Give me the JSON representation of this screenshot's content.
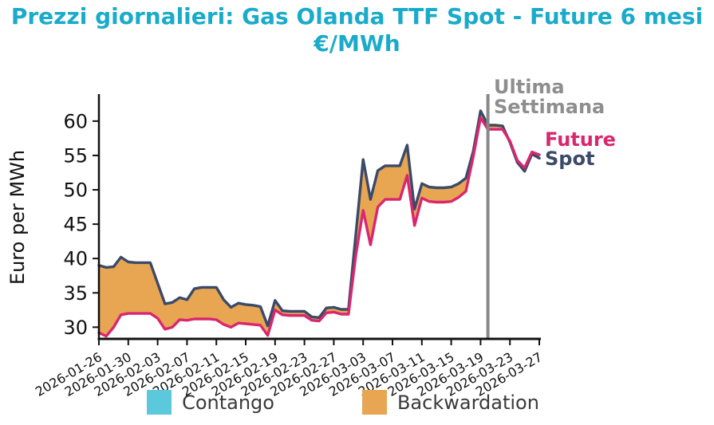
{
  "title": {
    "line1": "Prezzi giornalieri: Gas Olanda TTF Spot - Future 6 mesi",
    "line2": "€/MWh",
    "color": "#1aabca"
  },
  "colors": {
    "spot_line": "#3b4a68",
    "future_line": "#d9276f",
    "backwardation_fill": "#e8a652",
    "contango_fill": "#5cc8db",
    "vline": "#888888",
    "vline_label": "#8e8e8e",
    "axis": "#111111"
  },
  "annotations": {
    "vline": {
      "date": "2026-03-20",
      "label_line1": "Ultima",
      "label_line2": "Settimana"
    },
    "future_label": "Future",
    "spot_label": "Spot"
  },
  "legend": [
    {
      "label": "Contango",
      "color": "#5cc8db"
    },
    {
      "label": "Backwardation",
      "color": "#e8a652"
    }
  ],
  "x_axis": {
    "tick_labels": [
      "2026-01-26",
      "2026-01-30",
      "2026-02-03",
      "2026-02-07",
      "2026-02-11",
      "2026-02-15",
      "2026-02-19",
      "2026-02-23",
      "2026-02-27",
      "2026-03-03",
      "2026-03-07",
      "2026-03-11",
      "2026-03-15",
      "2026-03-19",
      "2026-03-23",
      "2026-03-27"
    ],
    "tick_every_days": 4
  },
  "y_axis": {
    "label": "Euro per MWh",
    "ticks": [
      30,
      35,
      40,
      45,
      50,
      55,
      60
    ]
  },
  "chart_data": {
    "type": "area",
    "title": "Prezzi giornalieri: Gas Olanda TTF Spot - Future 6 mesi €/MWh",
    "ylabel": "Euro per MWh",
    "ylim": [
      28.3,
      63.7
    ],
    "grid": false,
    "x": [
      "2026-01-26",
      "2026-01-27",
      "2026-01-28",
      "2026-01-29",
      "2026-01-30",
      "2026-01-31",
      "2026-02-01",
      "2026-02-02",
      "2026-02-03",
      "2026-02-04",
      "2026-02-05",
      "2026-02-06",
      "2026-02-07",
      "2026-02-08",
      "2026-02-09",
      "2026-02-10",
      "2026-02-11",
      "2026-02-12",
      "2026-02-13",
      "2026-02-14",
      "2026-02-15",
      "2026-02-16",
      "2026-02-17",
      "2026-02-18",
      "2026-02-19",
      "2026-02-20",
      "2026-02-21",
      "2026-02-22",
      "2026-02-23",
      "2026-02-24",
      "2026-02-25",
      "2026-02-26",
      "2026-02-27",
      "2026-02-28",
      "2026-03-01",
      "2026-03-02",
      "2026-03-03",
      "2026-03-04",
      "2026-03-05",
      "2026-03-06",
      "2026-03-07",
      "2026-03-08",
      "2026-03-09",
      "2026-03-10",
      "2026-03-11",
      "2026-03-12",
      "2026-03-13",
      "2026-03-14",
      "2026-03-15",
      "2026-03-16",
      "2026-03-17",
      "2026-03-18",
      "2026-03-19",
      "2026-03-20",
      "2026-03-21",
      "2026-03-22",
      "2026-03-23",
      "2026-03-24",
      "2026-03-25",
      "2026-03-26",
      "2026-03-27"
    ],
    "series": [
      {
        "name": "Spot",
        "color": "#3b4a68",
        "values": [
          39.0,
          38.7,
          38.8,
          40.2,
          39.5,
          39.4,
          39.4,
          39.4,
          36.4,
          33.4,
          33.6,
          34.3,
          34.0,
          35.6,
          35.8,
          35.8,
          35.8,
          34.0,
          32.9,
          33.5,
          33.3,
          33.2,
          33.0,
          30.2,
          33.9,
          32.4,
          32.3,
          32.3,
          32.3,
          31.5,
          31.4,
          32.8,
          32.9,
          32.6,
          32.6,
          43.5,
          54.4,
          48.6,
          52.8,
          53.5,
          53.5,
          53.5,
          56.5,
          47.2,
          50.9,
          50.4,
          50.3,
          50.3,
          50.4,
          50.9,
          51.7,
          55.6,
          61.5,
          59.4,
          59.4,
          59.3,
          56.9,
          54.0,
          52.7,
          55.2,
          54.6
        ]
      },
      {
        "name": "Future",
        "color": "#d9276f",
        "values": [
          29.2,
          28.7,
          30.0,
          31.8,
          32.0,
          32.0,
          32.0,
          32.0,
          31.3,
          29.7,
          30.0,
          31.1,
          31.0,
          31.2,
          31.2,
          31.2,
          31.1,
          30.4,
          30.0,
          30.6,
          30.5,
          30.4,
          30.3,
          28.8,
          32.5,
          31.8,
          31.7,
          31.7,
          31.7,
          31.0,
          30.9,
          32.1,
          32.2,
          31.9,
          31.9,
          40.5,
          47.0,
          42.0,
          47.5,
          48.6,
          48.6,
          48.6,
          52.1,
          44.8,
          48.8,
          48.3,
          48.2,
          48.2,
          48.3,
          48.9,
          49.8,
          54.8,
          60.5,
          58.8,
          58.8,
          58.8,
          57.1,
          54.3,
          53.2,
          55.5,
          55.1
        ]
      }
    ],
    "fills": [
      {
        "name": "Backwardation",
        "color": "#e8a652",
        "when": "spot_above_future"
      },
      {
        "name": "Contango",
        "color": "#5cc8db",
        "when": "future_above_spot"
      }
    ]
  }
}
